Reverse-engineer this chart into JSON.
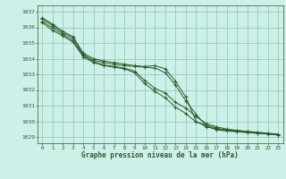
{
  "title": "Graphe pression niveau de la mer (hPa)",
  "bg_color": "#cdf0e8",
  "grid_color": "#99ccbb",
  "line_color": "#2d5a27",
  "marker_color": "#2d5a27",
  "xlim": [
    -0.5,
    23.5
  ],
  "ylim": [
    1028.6,
    1037.4
  ],
  "yticks": [
    1029,
    1030,
    1031,
    1032,
    1033,
    1034,
    1035,
    1036,
    1037
  ],
  "xticks": [
    0,
    1,
    2,
    3,
    4,
    5,
    6,
    7,
    8,
    9,
    10,
    11,
    12,
    13,
    14,
    15,
    16,
    17,
    18,
    19,
    20,
    21,
    22,
    23
  ],
  "series": [
    [
      1036.6,
      1036.2,
      1035.75,
      1035.4,
      1034.35,
      1034.0,
      1033.85,
      1033.75,
      1033.65,
      1033.55,
      1033.5,
      1033.55,
      1033.35,
      1032.55,
      1031.55,
      1030.0,
      1029.65,
      1029.5,
      1029.4,
      1029.35,
      1029.3,
      1029.25,
      1029.2,
      1029.15
    ],
    [
      1036.55,
      1036.1,
      1035.65,
      1035.3,
      1034.25,
      1033.9,
      1033.75,
      1033.65,
      1033.55,
      1033.5,
      1033.45,
      1033.4,
      1033.1,
      1032.3,
      1031.3,
      1030.45,
      1029.7,
      1029.45,
      1029.38,
      1029.33,
      1029.28,
      1029.23,
      1029.18,
      1029.13
    ],
    [
      1036.4,
      1035.95,
      1035.55,
      1035.15,
      1034.2,
      1033.8,
      1033.6,
      1033.5,
      1033.4,
      1033.2,
      1032.6,
      1032.1,
      1031.8,
      1031.2,
      1030.85,
      1030.3,
      1029.85,
      1029.65,
      1029.5,
      1029.42,
      1029.36,
      1029.3,
      1029.24,
      1029.18
    ],
    [
      1036.3,
      1035.8,
      1035.45,
      1035.05,
      1034.1,
      1033.75,
      1033.55,
      1033.45,
      1033.35,
      1033.1,
      1032.4,
      1031.9,
      1031.5,
      1030.9,
      1030.5,
      1029.95,
      1029.75,
      1029.55,
      1029.45,
      1029.4,
      1029.32,
      1029.27,
      1029.22,
      1029.12
    ]
  ]
}
